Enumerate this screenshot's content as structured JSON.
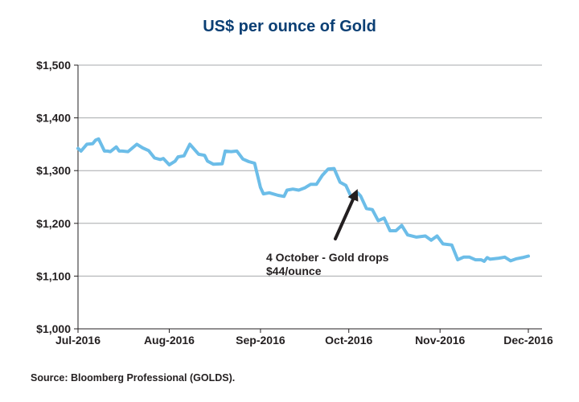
{
  "chart_data": {
    "type": "line",
    "title": "US$ per ounce of Gold",
    "source": "Source: Bloomberg Professional (GOLDS).",
    "y_ticks": [
      "$1,000",
      "$1,100",
      "$1,200",
      "$1,300",
      "$1,400",
      "$1,500"
    ],
    "x_ticks": [
      "Jul-2016",
      "Aug-2016",
      "Sep-2016",
      "Oct-2016",
      "Nov-2016",
      "Dec-2016"
    ],
    "ylim": [
      1000,
      1500
    ],
    "xlim": [
      "2016-07-01",
      "2016-12-01"
    ],
    "grid": "horizontal",
    "line_color": "#6cbde8",
    "annotation": {
      "lines": [
        "4 October - Gold drops",
        "$44/ounce"
      ],
      "arrow_to": {
        "x": "2016-10-04",
        "y": 1265
      }
    },
    "series": [
      {
        "x": [
          "2016-07-01",
          "2016-07-02",
          "2016-07-04",
          "2016-07-06",
          "2016-07-07",
          "2016-07-08",
          "2016-07-10",
          "2016-07-11",
          "2016-07-12",
          "2016-07-14",
          "2016-07-15",
          "2016-07-16",
          "2016-07-18",
          "2016-07-21",
          "2016-07-23",
          "2016-07-25",
          "2016-07-27",
          "2016-07-29",
          "2016-07-30",
          "2016-08-01",
          "2016-08-03",
          "2016-08-04",
          "2016-08-06",
          "2016-08-08",
          "2016-08-11",
          "2016-08-13",
          "2016-08-14",
          "2016-08-16",
          "2016-08-19",
          "2016-08-20",
          "2016-08-22",
          "2016-08-24",
          "2016-08-26",
          "2016-08-28",
          "2016-08-30",
          "2016-09-01",
          "2016-09-02",
          "2016-09-04",
          "2016-09-07",
          "2016-09-09",
          "2016-09-10",
          "2016-09-12",
          "2016-09-14",
          "2016-09-16",
          "2016-09-18",
          "2016-09-20",
          "2016-09-22",
          "2016-09-24",
          "2016-09-26",
          "2016-09-28",
          "2016-09-30",
          "2016-10-02",
          "2016-10-04",
          "2016-10-05",
          "2016-10-07",
          "2016-10-09",
          "2016-10-11",
          "2016-10-13",
          "2016-10-15",
          "2016-10-17",
          "2016-10-19",
          "2016-10-21",
          "2016-10-24",
          "2016-10-27",
          "2016-10-29",
          "2016-10-31",
          "2016-11-02",
          "2016-11-05",
          "2016-11-07",
          "2016-11-09",
          "2016-11-11",
          "2016-11-13",
          "2016-11-15",
          "2016-11-16",
          "2016-11-17",
          "2016-11-18",
          "2016-11-21",
          "2016-11-23",
          "2016-11-25",
          "2016-11-27",
          "2016-11-29",
          "2016-12-01"
        ],
        "values": [
          1342,
          1337,
          1350,
          1351,
          1358,
          1360,
          1337,
          1337,
          1336,
          1345,
          1337,
          1337,
          1336,
          1350,
          1343,
          1338,
          1324,
          1321,
          1323,
          1311,
          1318,
          1326,
          1328,
          1350,
          1331,
          1329,
          1318,
          1312,
          1313,
          1337,
          1336,
          1337,
          1322,
          1317,
          1314,
          1268,
          1256,
          1258,
          1253,
          1251,
          1263,
          1265,
          1263,
          1267,
          1274,
          1274,
          1291,
          1303,
          1304,
          1278,
          1272,
          1248,
          1258,
          1252,
          1228,
          1226,
          1205,
          1210,
          1186,
          1186,
          1196,
          1178,
          1174,
          1176,
          1168,
          1176,
          1161,
          1159,
          1131,
          1136,
          1136,
          1131,
          1131,
          1128,
          1135,
          1132,
          1134,
          1136,
          1129,
          1133,
          1135,
          1138
        ]
      }
    ]
  }
}
